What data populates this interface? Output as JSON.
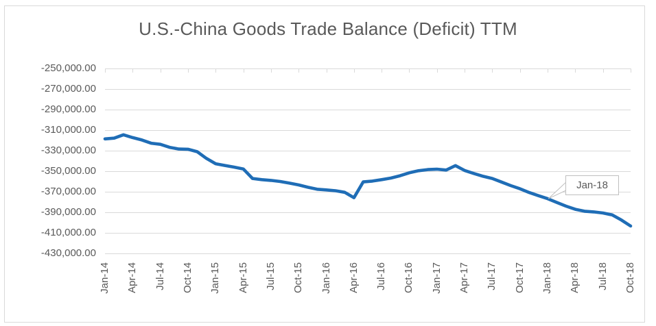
{
  "chart": {
    "title": "U.S.-China Goods Trade Balance (Deficit) TTM"
  },
  "chart_data": {
    "type": "line",
    "title": "U.S.-China Goods Trade Balance (Deficit) TTM",
    "xlabel": "",
    "ylabel": "",
    "ylim": [
      -430000,
      -250000
    ],
    "y_gridline_step": 20000,
    "grid": "horizontal",
    "legend": "none",
    "y_tick_labels": [
      "-250,000.00",
      "-270,000.00",
      "-290,000.00",
      "-310,000.00",
      "-330,000.00",
      "-350,000.00",
      "-370,000.00",
      "-390,000.00",
      "-410,000.00",
      "-430,000.00"
    ],
    "x_tick_labels": [
      "Jan-14",
      "Apr-14",
      "Jul-14",
      "Oct-14",
      "Jan-15",
      "Apr-15",
      "Jul-15",
      "Oct-15",
      "Jan-16",
      "Apr-16",
      "Jul-16",
      "Oct-16",
      "Jan-17",
      "Apr-17",
      "Jul-17",
      "Oct-17",
      "Jan-18",
      "Apr-18",
      "Jul-18",
      "Oct-18"
    ],
    "x": [
      "Jan-14",
      "Feb-14",
      "Mar-14",
      "Apr-14",
      "May-14",
      "Jun-14",
      "Jul-14",
      "Aug-14",
      "Sep-14",
      "Oct-14",
      "Nov-14",
      "Dec-14",
      "Jan-15",
      "Feb-15",
      "Mar-15",
      "Apr-15",
      "May-15",
      "Jun-15",
      "Jul-15",
      "Aug-15",
      "Sep-15",
      "Oct-15",
      "Nov-15",
      "Dec-15",
      "Jan-16",
      "Feb-16",
      "Mar-16",
      "Apr-16",
      "May-16",
      "Jun-16",
      "Jul-16",
      "Aug-16",
      "Sep-16",
      "Oct-16",
      "Nov-16",
      "Dec-16",
      "Jan-17",
      "Feb-17",
      "Mar-17",
      "Apr-17",
      "May-17",
      "Jun-17",
      "Jul-17",
      "Aug-17",
      "Sep-17",
      "Oct-17",
      "Nov-17",
      "Dec-17",
      "Jan-18",
      "Feb-18",
      "Mar-18",
      "Apr-18",
      "May-18",
      "Jun-18",
      "Jul-18",
      "Aug-18",
      "Sep-18",
      "Oct-18"
    ],
    "values": [
      -318500,
      -317800,
      -314500,
      -317300,
      -319600,
      -322700,
      -323800,
      -326700,
      -328400,
      -328600,
      -331000,
      -337500,
      -342700,
      -344400,
      -346000,
      -347800,
      -357100,
      -358200,
      -358900,
      -360000,
      -361600,
      -363300,
      -365600,
      -367500,
      -368200,
      -369000,
      -370500,
      -375800,
      -360400,
      -359600,
      -358200,
      -356700,
      -354400,
      -351500,
      -349500,
      -348400,
      -348000,
      -348900,
      -344500,
      -349300,
      -352200,
      -354900,
      -357100,
      -360500,
      -364000,
      -367100,
      -370700,
      -373800,
      -376700,
      -380400,
      -384000,
      -387100,
      -388900,
      -389600,
      -390700,
      -392500,
      -397500,
      -403300
    ],
    "annotation": {
      "label": "Jan-18",
      "x": "Jan-18",
      "index": 48,
      "value": -376700
    },
    "colors": {
      "series": "#1f6db6",
      "gridline": "#d9d9d9",
      "axis_text": "#595959",
      "title_text": "#595959",
      "callout_border": "#bfbfbf",
      "callout_fill": "#ffffff",
      "frame_border": "#d9d9d9"
    }
  }
}
